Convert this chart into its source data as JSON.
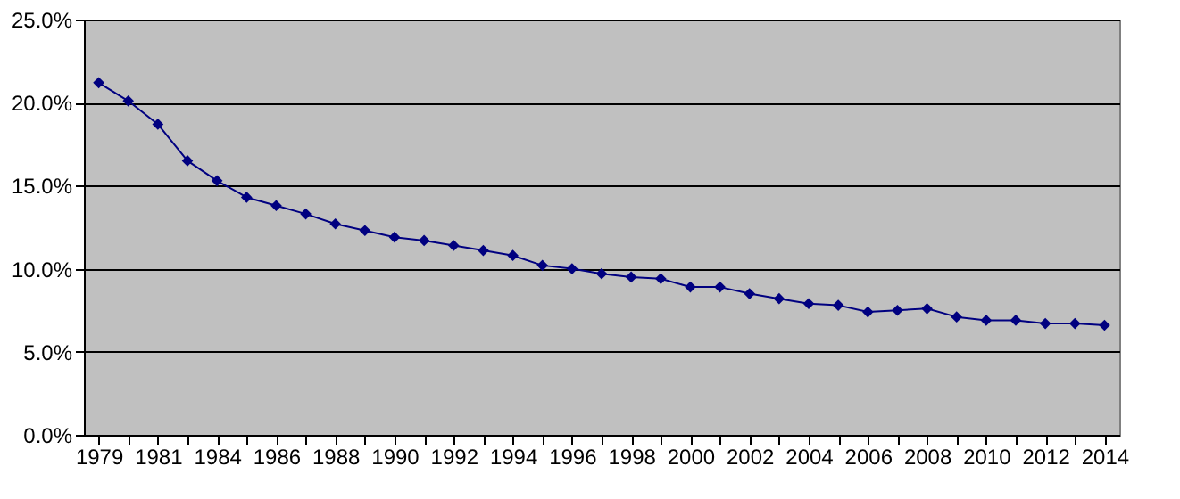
{
  "chart_data": {
    "type": "line",
    "categories": [
      "1979",
      null,
      "1981",
      null,
      "1984",
      null,
      "1986",
      null,
      "1988",
      null,
      "1990",
      null,
      "1992",
      null,
      "1994",
      null,
      "1996",
      null,
      "1998",
      null,
      "2000",
      null,
      "2002",
      null,
      "2004",
      null,
      "2006",
      null,
      "2008",
      null,
      "2010",
      null,
      "2012",
      null,
      "2014"
    ],
    "series": [
      {
        "color": "#000080",
        "values": [
          21.2,
          20.1,
          18.7,
          16.5,
          15.3,
          14.3,
          13.8,
          13.3,
          12.7,
          12.3,
          11.9,
          11.7,
          11.4,
          11.1,
          10.8,
          10.2,
          10.0,
          9.7,
          9.5,
          9.4,
          8.9,
          8.9,
          8.5,
          8.2,
          7.9,
          7.8,
          7.4,
          7.5,
          7.6,
          7.1,
          6.9,
          6.9,
          6.7,
          6.7,
          6.6
        ]
      }
    ],
    "ylim": [
      0,
      25
    ],
    "yticks": [
      {
        "value": 0,
        "label": "0.0%"
      },
      {
        "value": 5,
        "label": "5.0%"
      },
      {
        "value": 10,
        "label": "10.0%"
      },
      {
        "value": 15,
        "label": "15.0%"
      },
      {
        "value": 20,
        "label": "20.0%"
      },
      {
        "value": 25,
        "label": "25.0%"
      }
    ],
    "grid": "y",
    "marker": "diamond",
    "line_style": "solid"
  }
}
